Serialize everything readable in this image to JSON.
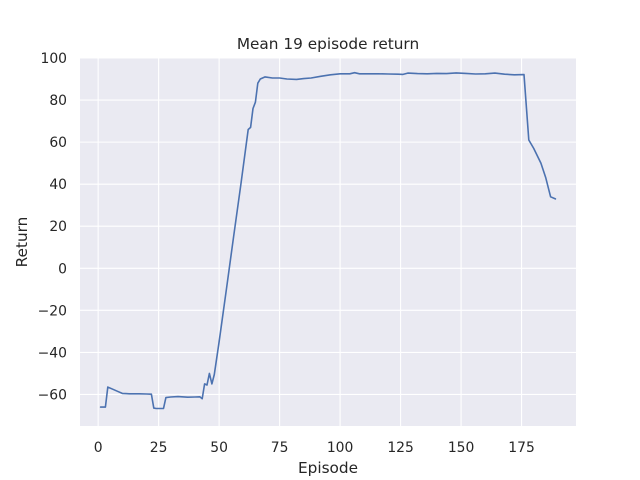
{
  "chart_data": {
    "type": "line",
    "title": "Mean 19 episode return",
    "xlabel": "Episode",
    "ylabel": "Return",
    "xlim": [
      -7.5,
      197.5
    ],
    "ylim": [
      -75,
      100
    ],
    "xticks": [
      0,
      25,
      50,
      75,
      100,
      125,
      150,
      175
    ],
    "yticks": [
      -60,
      -40,
      -20,
      0,
      20,
      40,
      60,
      80,
      100
    ],
    "xtick_labels": [
      "0",
      "25",
      "50",
      "75",
      "100",
      "125",
      "150",
      "175"
    ],
    "ytick_labels": [
      "−60",
      "−40",
      "−20",
      "0",
      "20",
      "40",
      "60",
      "80",
      "100"
    ],
    "grid": true,
    "background": "#eaeaf2",
    "grid_color": "#ffffff",
    "series": [
      {
        "color": "#4c72b0",
        "x": [
          1,
          3,
          4,
          6,
          8,
          10,
          13,
          17,
          20,
          22,
          23,
          24,
          27,
          28,
          30,
          33,
          37,
          40,
          42,
          43,
          44,
          45,
          46,
          47,
          48,
          50,
          53,
          56,
          59,
          62,
          63,
          64,
          65,
          66,
          67,
          69,
          72,
          75,
          78,
          82,
          85,
          88,
          92,
          96,
          100,
          104,
          106,
          108,
          112,
          116,
          120,
          124,
          126,
          128,
          132,
          136,
          140,
          144,
          148,
          152,
          156,
          160,
          164,
          168,
          172,
          176,
          178,
          180,
          183,
          185,
          187,
          189
        ],
        "values": [
          -66,
          -66,
          -56.5,
          -57.5,
          -58.5,
          -59.5,
          -59.7,
          -59.7,
          -59.8,
          -59.9,
          -66.5,
          -66.7,
          -66.7,
          -61.5,
          -61.2,
          -61,
          -61.3,
          -61.2,
          -61.1,
          -62,
          -55,
          -55.5,
          -50,
          -55,
          -50.5,
          -35,
          -10,
          15,
          40,
          66,
          67,
          76,
          79,
          88,
          90,
          91,
          90.5,
          90.5,
          90,
          89.8,
          90.2,
          90.5,
          91.3,
          92,
          92.5,
          92.5,
          93,
          92.5,
          92.5,
          92.5,
          92.4,
          92.3,
          92.2,
          92.8,
          92.6,
          92.5,
          92.7,
          92.6,
          92.9,
          92.7,
          92.4,
          92.5,
          92.8,
          92.3,
          92,
          92.1,
          61,
          57,
          50,
          43,
          34,
          33
        ]
      }
    ]
  }
}
